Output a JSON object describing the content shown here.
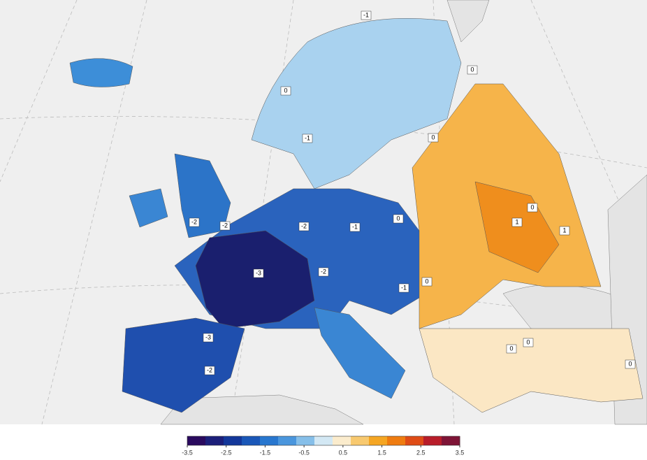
{
  "colorbar": {
    "range": [
      -3.5,
      3.5
    ],
    "ticks": [
      -3.5,
      -2.5,
      -1.5,
      -0.5,
      0.5,
      1.5,
      2.5,
      3.5
    ],
    "colors": [
      "#2a0a5e",
      "#1c1f7a",
      "#13379a",
      "#1a57b8",
      "#2877cf",
      "#4a96dd",
      "#86bfe9",
      "#d3e8f4",
      "#fbeccd",
      "#f8c96f",
      "#f5a623",
      "#ef7c10",
      "#df4c16",
      "#b81d2a",
      "#7e1436"
    ]
  },
  "contour_labels": [
    -1,
    0,
    0,
    -1,
    0,
    0,
    1,
    1,
    -2,
    -1,
    0,
    -2,
    -2,
    -3,
    -2,
    -1,
    0,
    -3,
    -2,
    0,
    0,
    0
  ]
}
